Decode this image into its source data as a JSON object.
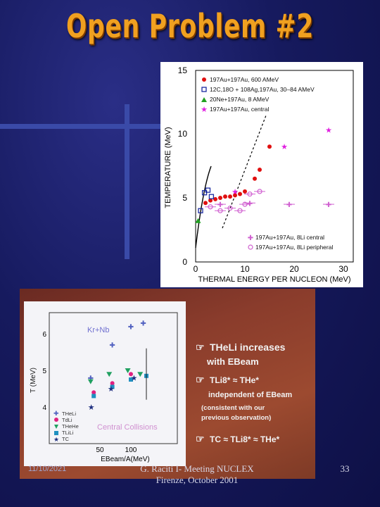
{
  "slide": {
    "title": "Open Problem #2",
    "footer_left": "11/10/2021",
    "footer_center": "G. Raciti I- Meeting NUCLEX Firenze, October 2001",
    "slide_number": "33"
  },
  "figure1": {
    "ylabel": "TEMPERATURE (MeV)",
    "xlabel": "THERMAL ENERGY PER NUCLEON (MeV)",
    "yticks": [
      "0",
      "5",
      "10",
      "15"
    ],
    "xticks": [
      "0",
      "10",
      "20",
      "30"
    ],
    "legend_top": [
      "197Au+197Au, 600 AMeV",
      "12C,18O + 108Ag,197Au, 30–84 AMeV",
      "20Ne+197Au, 8 AMeV",
      "197Au+197Au, central"
    ],
    "legend_bottom": [
      "197Au+197Au, 8Li central",
      "197Au+197Au, 8Li peripheral"
    ]
  },
  "figure2": {
    "reaction": "Kr+Nb",
    "ylabel": "T (MeV)",
    "xlabel": "EBeam/A(MeV)",
    "yticks": [
      "4",
      "5",
      "6"
    ],
    "xticks": [
      "50",
      "100"
    ],
    "annotation": "Central Collisions",
    "legend": [
      "THeLi",
      "TdLi",
      "THeHe",
      "TLiLi",
      "TC"
    ],
    "note1_a": "THeLi increases",
    "note1_b": "with EBeam",
    "note2_a": "TLi8* ≈ THe*",
    "note2_b": "independent of EBeam",
    "note2_c": "(consistent with our",
    "note2_d": "previous observation)",
    "note3": "TC  ≈ TLi8* ≈ THe*"
  },
  "chart_data": [
    {
      "type": "scatter",
      "xlabel": "THERMAL ENERGY PER NUCLEON (MeV)",
      "ylabel": "TEMPERATURE (MeV)",
      "xlim": [
        0,
        32
      ],
      "ylim": [
        0,
        15
      ],
      "series": [
        {
          "name": "197Au+197Au, 600 AMeV",
          "color": "#e01010",
          "x": [
            2,
            3,
            4,
            5,
            6,
            7,
            8,
            9,
            10,
            12,
            13,
            15
          ],
          "y": [
            4.6,
            4.8,
            4.9,
            5.0,
            5.1,
            5.1,
            5.2,
            5.3,
            5.5,
            6.5,
            7.2,
            9.0
          ]
        },
        {
          "name": "12C,18O + 108Ag,197Au, 30–84 AMeV",
          "color": "#1a2aa0",
          "x": [
            1,
            1.8,
            2.5,
            3.2
          ],
          "y": [
            4.0,
            5.4,
            5.6,
            5.1
          ]
        },
        {
          "name": "20Ne+197Au, 8 AMeV",
          "color": "#20a020",
          "x": [
            0.5
          ],
          "y": [
            3.2
          ]
        },
        {
          "name": "197Au+197Au, central",
          "color": "#e020e0",
          "x": [
            8,
            18,
            27
          ],
          "y": [
            5.5,
            9.0,
            10.3
          ]
        },
        {
          "name": "197Au+197Au, 8Li central",
          "color": "#d060d0",
          "x": [
            5,
            11,
            19,
            27
          ],
          "y": [
            4.5,
            4.6,
            4.5,
            4.5
          ]
        },
        {
          "name": "197Au+197Au, 8Li peripheral",
          "color": "#d060d0",
          "x": [
            3,
            5,
            7,
            9,
            10,
            11,
            13
          ],
          "y": [
            4.3,
            4.0,
            4.2,
            4.0,
            4.5,
            5.3,
            5.5
          ]
        }
      ]
    },
    {
      "type": "scatter",
      "title": "Kr+Nb",
      "xlabel": "EBeam/A(MeV)",
      "ylabel": "T (MeV)",
      "xlim": [
        20,
        145
      ],
      "ylim": [
        3.2,
        6.8
      ],
      "series": [
        {
          "name": "THeLi",
          "color": "#5060c0",
          "x": [
            35,
            70,
            100,
            120
          ],
          "y": [
            4.8,
            5.7,
            6.2,
            6.3
          ]
        },
        {
          "name": "TdLi",
          "color": "#e02080",
          "x": [
            40,
            70,
            100
          ],
          "y": [
            4.4,
            4.65,
            4.9
          ]
        },
        {
          "name": "THeHe",
          "color": "#20a060",
          "x": [
            35,
            65,
            95,
            115
          ],
          "y": [
            4.7,
            4.9,
            5.0,
            4.9
          ]
        },
        {
          "name": "TLiLi",
          "color": "#2090c0",
          "x": [
            40,
            70,
            100,
            125
          ],
          "y": [
            4.3,
            4.55,
            4.75,
            4.85
          ]
        },
        {
          "name": "TC",
          "color": "#203080",
          "x": [
            36,
            68,
            105
          ],
          "y": [
            4.0,
            4.5,
            4.8
          ]
        }
      ]
    }
  ]
}
